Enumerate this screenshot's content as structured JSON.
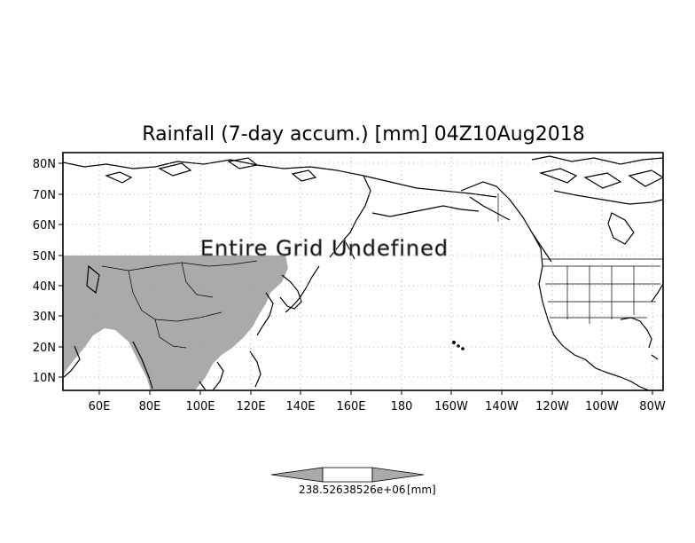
{
  "title": "Rainfall (7-day accum.) [mm] 04Z10Aug2018",
  "overlay_message": "Entire Grid Undefined",
  "lat_labels": [
    "80N",
    "70N",
    "60N",
    "50N",
    "40N",
    "30N",
    "20N",
    "10N"
  ],
  "lon_labels": [
    "60E",
    "80E",
    "100E",
    "120E",
    "140E",
    "160E",
    "180",
    "160W",
    "140W",
    "120W",
    "100W",
    "80W"
  ],
  "colorbar": {
    "label_text": "238.52638526e+06",
    "unit": "[mm]"
  },
  "colors": {
    "masked_region": "#aaaaaa",
    "coastline": "#000000",
    "gridline": "#9a9a9a",
    "overlay_text": "#888888"
  }
}
